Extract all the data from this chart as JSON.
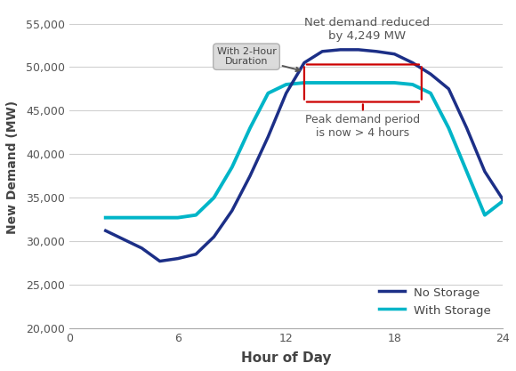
{
  "no_storage_x": [
    2,
    4,
    5,
    6,
    7,
    8,
    9,
    10,
    11,
    12,
    13,
    14,
    15,
    16,
    17,
    18,
    19,
    20,
    21,
    22,
    23,
    24
  ],
  "no_storage_y": [
    31200,
    29200,
    27700,
    28000,
    28500,
    30500,
    33500,
    37500,
    42000,
    47000,
    50500,
    51800,
    52000,
    52000,
    51800,
    51500,
    50500,
    49200,
    47500,
    43000,
    38000,
    34800
  ],
  "with_storage_x": [
    2,
    3,
    4,
    5,
    6,
    7,
    8,
    9,
    10,
    11,
    12,
    13,
    14,
    15,
    16,
    17,
    18,
    19,
    20,
    21,
    22,
    23,
    24
  ],
  "with_storage_y": [
    32700,
    32700,
    32700,
    32700,
    32700,
    33000,
    35000,
    38500,
    43000,
    47000,
    48000,
    48200,
    48200,
    48200,
    48200,
    48200,
    48200,
    48000,
    47000,
    43000,
    38000,
    33000,
    34600
  ],
  "no_storage_color": "#1c2f87",
  "with_storage_color": "#00b5c8",
  "annotation_color": "#cc0000",
  "ylabel": "New Demand (MW)",
  "xlabel": "Hour of Day",
  "ylim": [
    20000,
    57000
  ],
  "xlim": [
    0,
    24
  ],
  "yticks": [
    20000,
    25000,
    30000,
    35000,
    40000,
    45000,
    50000,
    55000
  ],
  "xticks": [
    0,
    6,
    12,
    18,
    24
  ],
  "legend_labels": [
    "No Storage",
    "With Storage"
  ],
  "annotation1_text": "Net demand reduced\nby 4,249 MW",
  "annotation2_text": "With 2-Hour\nDuration",
  "annotation3_text": "Peak demand period\nis now > 4 hours",
  "background_color": "#ffffff",
  "grid_color": "#d0d0d0",
  "red_top_y": 50300,
  "red_top_x1": 13.0,
  "red_top_x2": 19.5,
  "red_bot_y": 46000,
  "red_bot_x1": 13.0,
  "red_bot_x2": 19.5
}
